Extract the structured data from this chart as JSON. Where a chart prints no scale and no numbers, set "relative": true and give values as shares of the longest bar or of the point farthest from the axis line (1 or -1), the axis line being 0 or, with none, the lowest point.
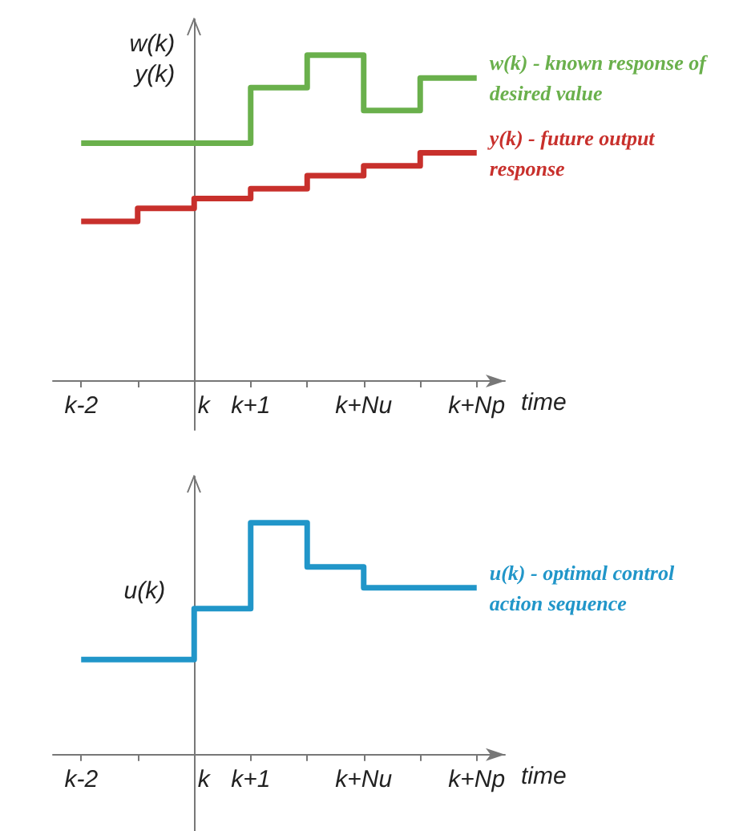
{
  "chart_data": [
    {
      "type": "step",
      "relative": true,
      "ylabel": "w(k)\ny(k)",
      "xlabel": "time",
      "marker": "none",
      "categories": [
        "k-2",
        null,
        "k",
        "k+1",
        null,
        "k+Nu",
        null,
        "k+Np"
      ],
      "series": [
        {
          "name": "w(k) - known response of desired value",
          "color": "#6ab04c",
          "values": [
            0.73,
            0.73,
            0.73,
            0.9,
            1,
            0.83,
            0.93,
            0.93
          ]
        },
        {
          "name": "y(k) - future output response",
          "color": "#c8302c",
          "values": [
            0.49,
            0.53,
            0.56,
            0.59,
            0.63,
            0.66,
            0.7,
            0.7
          ]
        }
      ]
    },
    {
      "type": "step",
      "relative": true,
      "ylabel": "u(k)",
      "xlabel": "time",
      "marker": "none",
      "categories": [
        "k-2",
        null,
        "k",
        "k+1",
        null,
        "k+Nu",
        null,
        "k+Np"
      ],
      "series": [
        {
          "name": "u(k) - optimal control action sequence",
          "color": "#2196c9",
          "values": [
            0.41,
            0.41,
            0.63,
            1,
            0.81,
            0.72,
            0.72,
            0.72
          ]
        }
      ]
    }
  ]
}
